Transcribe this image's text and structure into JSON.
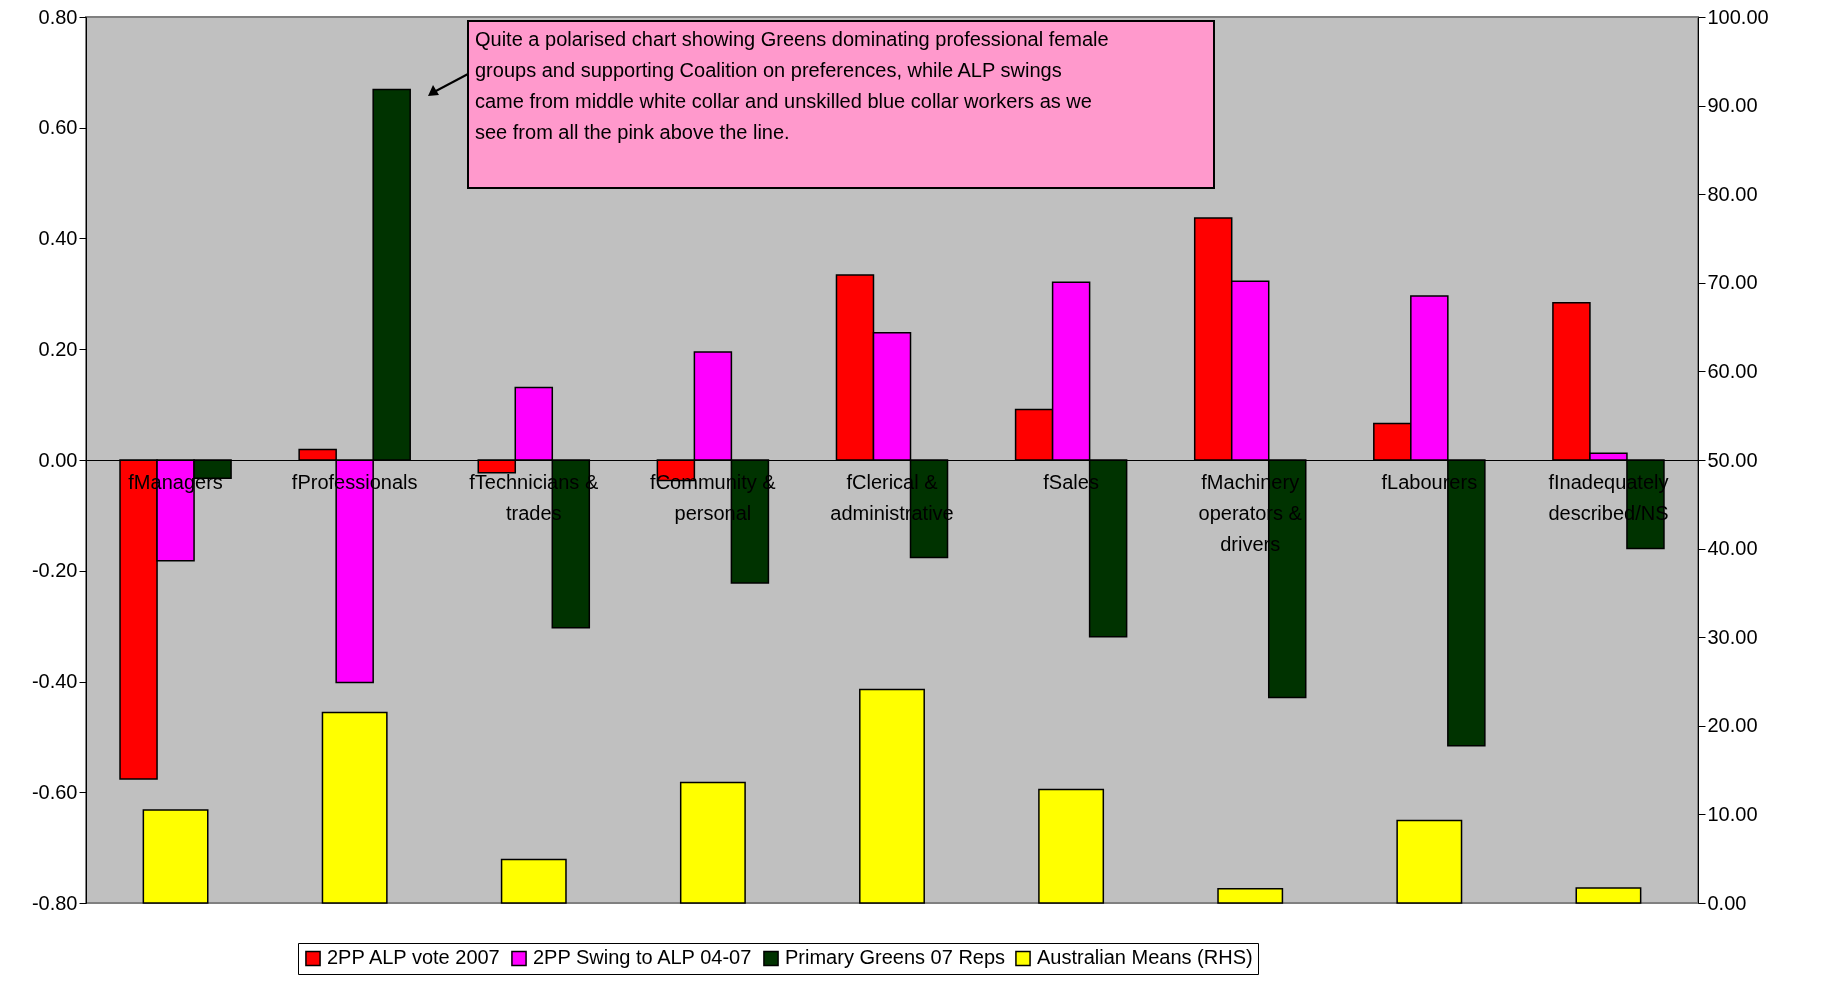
{
  "chart_data": {
    "type": "bar",
    "categories": [
      "fManagers",
      "fProfessionals",
      "fTechnicians & trades",
      "fCommunity & personal",
      "fClerical & administrative",
      "fSales",
      "fMachinery operators & drivers",
      "fLabourers",
      "fInadequately described/NS"
    ],
    "series": [
      {
        "name": "2PP ALP vote 2007",
        "color": "#ff0000",
        "values": [
          -0.576,
          0.019,
          -0.023,
          -0.037,
          0.334,
          0.091,
          0.437,
          0.066,
          0.284
        ]
      },
      {
        "name": "2PP Swing to ALP 04-07",
        "color": "#ff00ff",
        "values": [
          -0.182,
          -0.402,
          0.131,
          0.195,
          0.23,
          0.321,
          0.323,
          0.296,
          0.012
        ]
      },
      {
        "name": "Primary Greens 07 Reps",
        "color": "#003300",
        "values": [
          -0.033,
          0.669,
          -0.303,
          -0.222,
          -0.176,
          -0.319,
          -0.429,
          -0.516,
          -0.16
        ]
      },
      {
        "name": "Australian Means (RHS)",
        "color": "#ffff00",
        "axis": "y2",
        "type": "bar",
        "values": [
          10.5,
          21.5,
          4.9,
          13.6,
          24.1,
          12.8,
          1.6,
          9.3,
          1.7
        ]
      }
    ],
    "ylim": [
      -0.8,
      0.8
    ],
    "yticks": [
      {
        "value": -0.8,
        "label": "-0.80"
      },
      {
        "value": -0.6,
        "label": "-0.60"
      },
      {
        "value": -0.4,
        "label": "-0.40"
      },
      {
        "value": -0.2,
        "label": "-0.20"
      },
      {
        "value": 0,
        "label": "0.00"
      },
      {
        "value": 0.2,
        "label": "0.20"
      },
      {
        "value": 0.4,
        "label": "0.40"
      },
      {
        "value": 0.6,
        "label": "0.60"
      },
      {
        "value": 0.8,
        "label": "0.80"
      }
    ],
    "y2lim": [
      0,
      100
    ],
    "y2ticks": [
      {
        "value": 0,
        "label": "0.00"
      },
      {
        "value": 10,
        "label": "10.00"
      },
      {
        "value": 20,
        "label": "20.00"
      },
      {
        "value": 30,
        "label": "30.00"
      },
      {
        "value": 40,
        "label": "40.00"
      },
      {
        "value": 50,
        "label": "50.00"
      },
      {
        "value": 60,
        "label": "60.00"
      },
      {
        "value": 70,
        "label": "70.00"
      },
      {
        "value": 80,
        "label": "80.00"
      },
      {
        "value": 90,
        "label": "90.00"
      },
      {
        "value": 100,
        "label": "100.00"
      }
    ],
    "legend": "bottom",
    "annotations": [
      "Quite a polarised chart showing Greens dominating professional female groups and supporting Coalition on preferences, while ALP swings came from middle white collar and unskilled blue collar workers as we see from all the pink above the line."
    ]
  }
}
